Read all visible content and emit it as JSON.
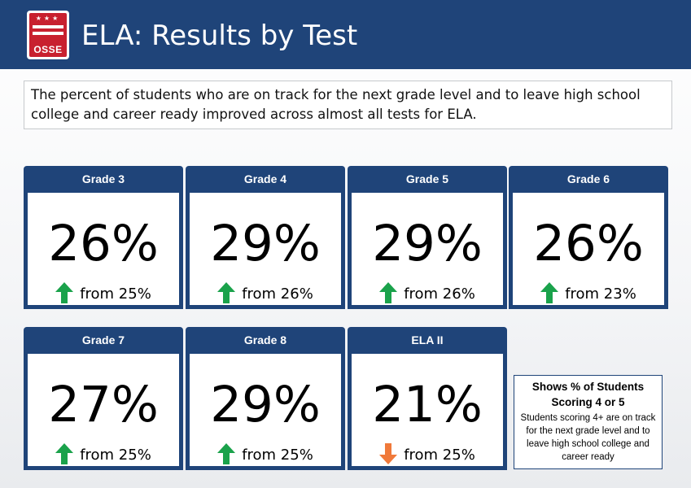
{
  "header": {
    "logo_text": "OSSE",
    "logo_stars": "★★★",
    "title": "ELA: Results by Test"
  },
  "intro": {
    "text": "The percent of students who are on track for the next grade level and to leave high school college and career ready improved across almost all tests for ELA."
  },
  "colors": {
    "header_bg": "#1f4479",
    "up_arrow": "#1aa24b",
    "down_arrow": "#f0793a"
  },
  "cards": [
    {
      "label": "Grade 3",
      "percent": "26%",
      "change": "from 25%",
      "direction": "up"
    },
    {
      "label": "Grade 4",
      "percent": "29%",
      "change": "from 26%",
      "direction": "up"
    },
    {
      "label": "Grade 5",
      "percent": "29%",
      "change": "from 26%",
      "direction": "up"
    },
    {
      "label": "Grade 6",
      "percent": "26%",
      "change": "from 23%",
      "direction": "up"
    },
    {
      "label": "Grade 7",
      "percent": "27%",
      "change": "from 25%",
      "direction": "up"
    },
    {
      "label": "Grade 8",
      "percent": "29%",
      "change": "from 25%",
      "direction": "up"
    },
    {
      "label": "ELA II",
      "percent": "21%",
      "change": "from 25%",
      "direction": "down"
    }
  ],
  "note": {
    "title": "Shows % of Students Scoring 4 or 5",
    "body": "Students scoring 4+ are on track for the next grade level and to leave high school college and career ready"
  }
}
